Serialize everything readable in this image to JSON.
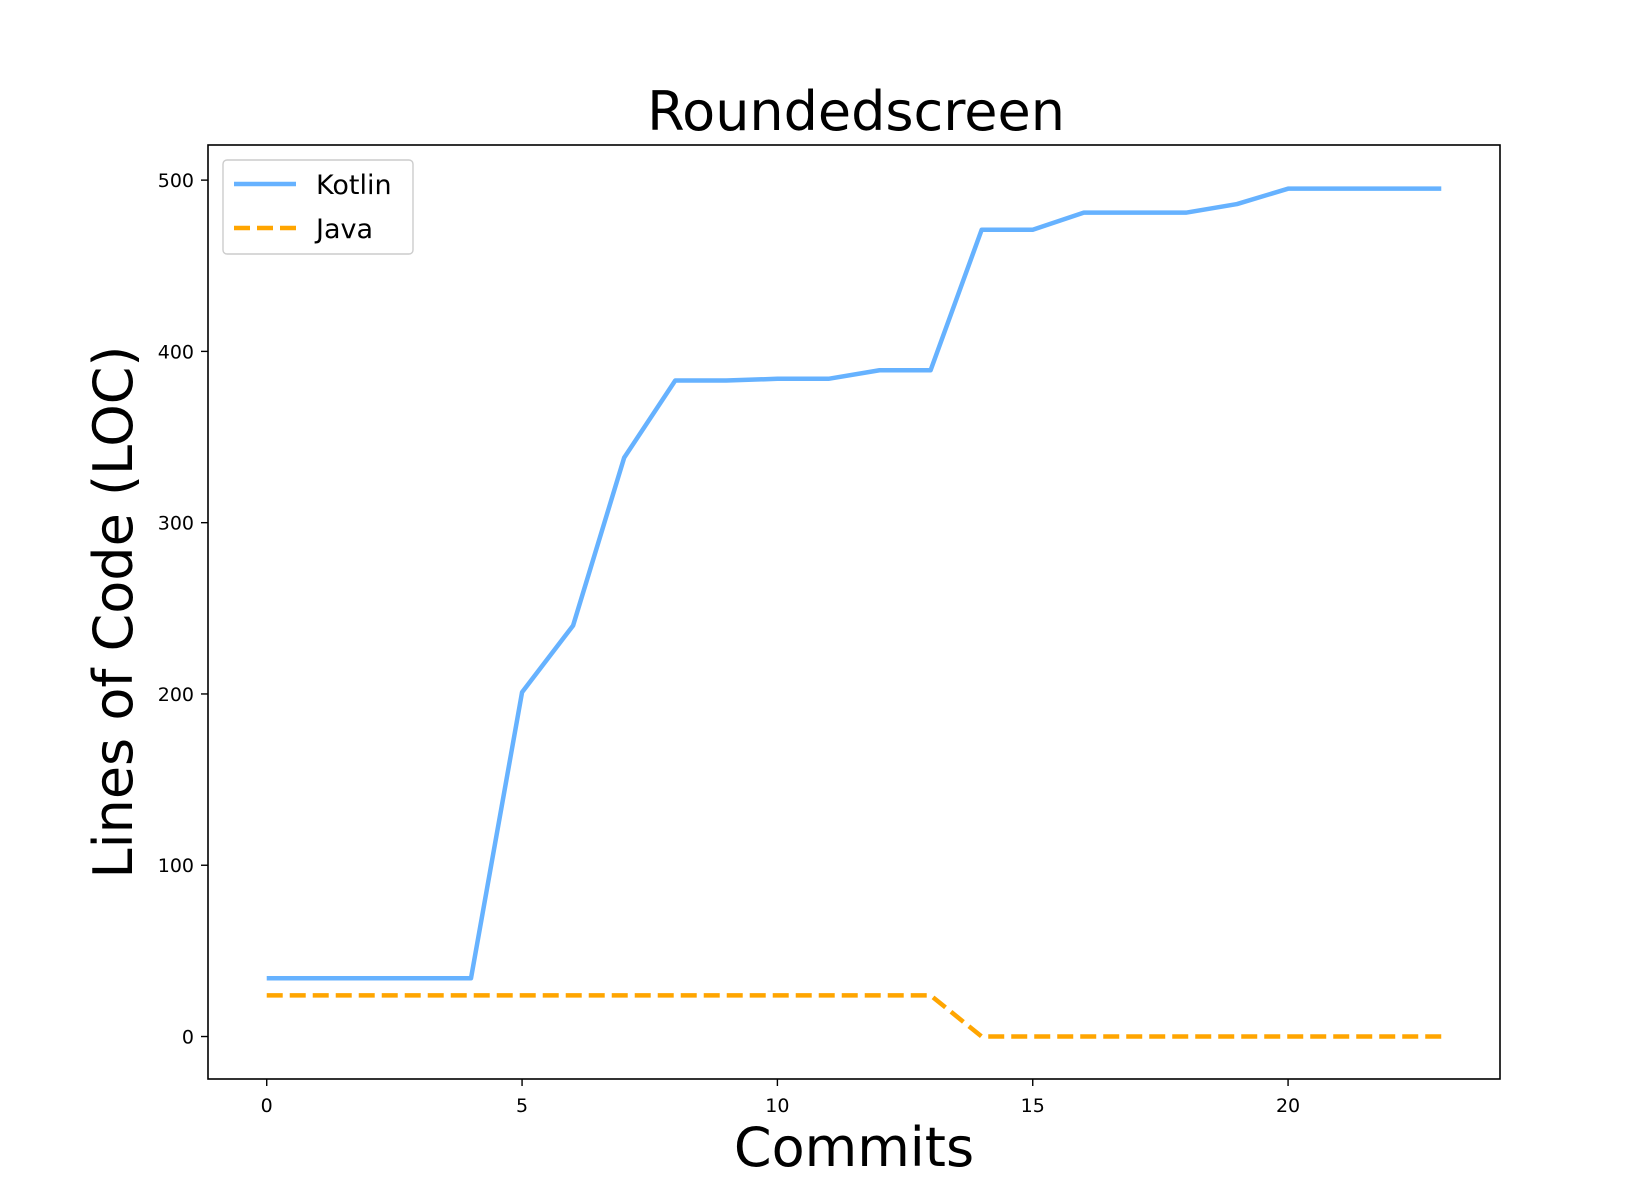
{
  "chart_data": {
    "type": "line",
    "title": "Roundedscreen",
    "xlabel": "Commits",
    "ylabel": "Lines of Code (LOC)",
    "xlim": [
      -1.15,
      24.15
    ],
    "ylim": [
      -24.8,
      520.5
    ],
    "xticks": [
      0,
      5,
      10,
      15,
      20
    ],
    "yticks": [
      0,
      100,
      200,
      300,
      400,
      500
    ],
    "grid": false,
    "legend_position": "upper left",
    "x": [
      0,
      1,
      2,
      3,
      4,
      5,
      6,
      7,
      8,
      9,
      10,
      11,
      12,
      13,
      14,
      15,
      16,
      17,
      18,
      19,
      20,
      21,
      22,
      23
    ],
    "series": [
      {
        "name": "Kotlin",
        "color": "#66b2ff",
        "style": "solid",
        "values": [
          34,
          34,
          34,
          34,
          34,
          201,
          240,
          338,
          383,
          383,
          384,
          384,
          389,
          389,
          471,
          471,
          481,
          481,
          481,
          486,
          495,
          495,
          495,
          495
        ]
      },
      {
        "name": "Java",
        "color": "#ffa500",
        "style": "dashed",
        "values": [
          24,
          24,
          24,
          24,
          24,
          24,
          24,
          24,
          24,
          24,
          24,
          24,
          24,
          24,
          0,
          0,
          0,
          0,
          0,
          0,
          0,
          0,
          0,
          0
        ]
      }
    ]
  }
}
